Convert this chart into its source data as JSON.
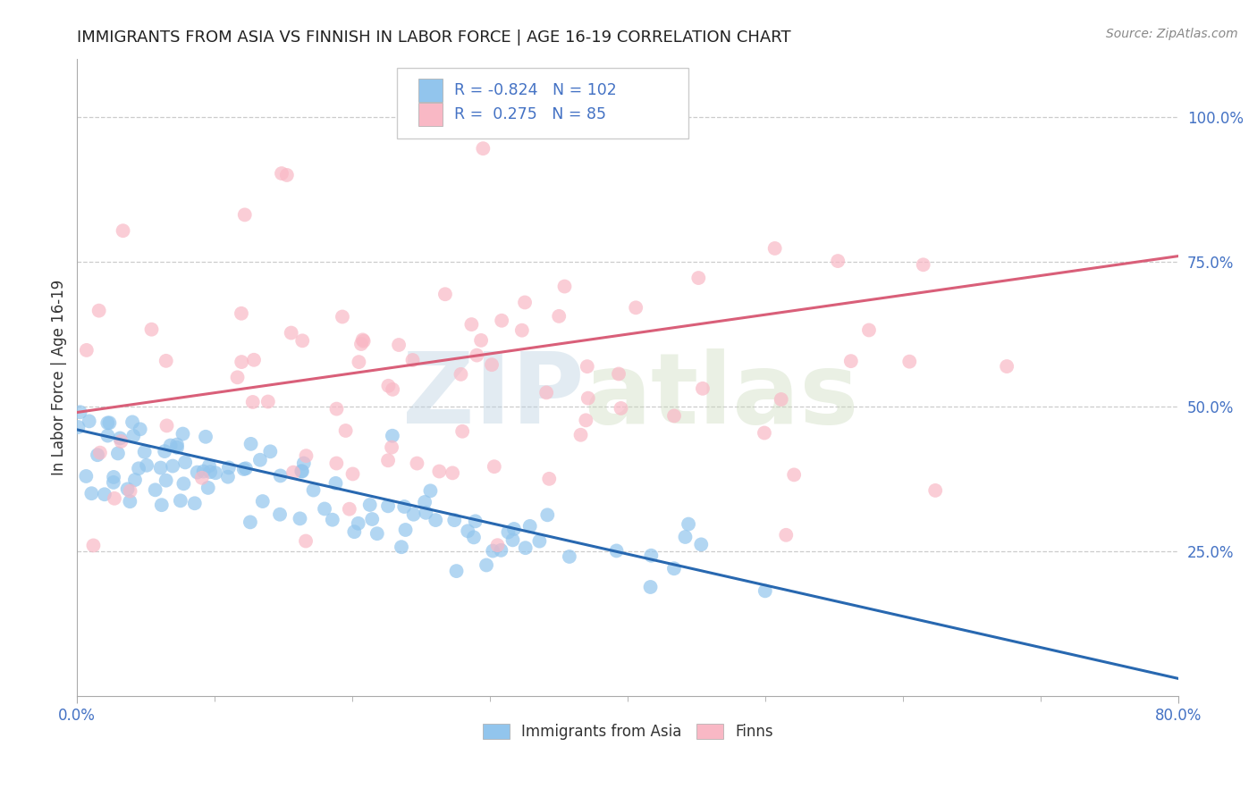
{
  "title": "IMMIGRANTS FROM ASIA VS FINNISH IN LABOR FORCE | AGE 16-19 CORRELATION CHART",
  "source": "Source: ZipAtlas.com",
  "ylabel": "In Labor Force | Age 16-19",
  "xlim": [
    0.0,
    0.8
  ],
  "ylim": [
    0.0,
    1.1
  ],
  "xticks": [
    0.0,
    0.8
  ],
  "xtick_labels": [
    "0.0%",
    "80.0%"
  ],
  "yticks": [
    0.25,
    0.5,
    0.75,
    1.0
  ],
  "ytick_labels": [
    "25.0%",
    "50.0%",
    "75.0%",
    "100.0%"
  ],
  "blue_R": -0.824,
  "blue_N": 102,
  "pink_R": 0.275,
  "pink_N": 85,
  "blue_color": "#92C5ED",
  "pink_color": "#F9B8C5",
  "blue_line_color": "#2868B0",
  "pink_line_color": "#D95F79",
  "watermark_zip": "ZIP",
  "watermark_atlas": "atlas",
  "legend_label_blue": "Immigrants from Asia",
  "legend_label_pink": "Finns",
  "background_color": "#ffffff",
  "grid_color": "#cccccc",
  "ytick_color": "#4472C4",
  "xtick_color": "#4472C4",
  "legend_text_color": "#4472C4",
  "blue_line_start_y": 0.46,
  "blue_line_end_y": 0.03,
  "pink_line_start_y": 0.49,
  "pink_line_end_y": 0.76
}
